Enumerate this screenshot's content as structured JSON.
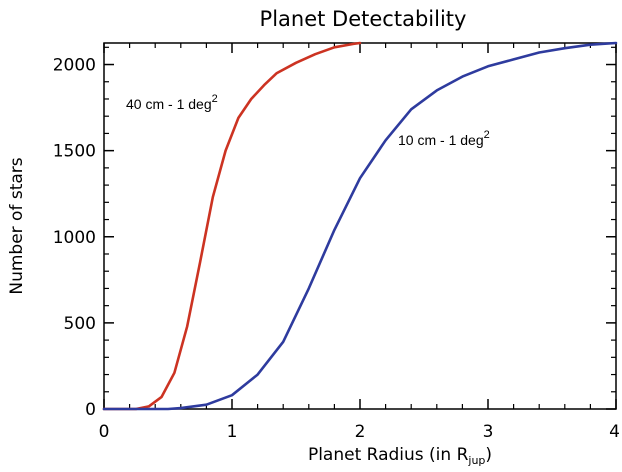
{
  "chart_data": {
    "type": "line",
    "title": "Planet Detectability",
    "xlabel": "Planet Radius (in R",
    "xlabel_sub": "jup",
    "xlabel_close": ")",
    "ylabel": "Number of stars",
    "xlim": [
      0,
      4
    ],
    "ylim": [
      0,
      2125
    ],
    "x_ticks": [
      "0",
      "1",
      "2",
      "3",
      "4"
    ],
    "y_ticks": [
      "0",
      "500",
      "1000",
      "1500",
      "2000"
    ],
    "grid": false,
    "series": [
      {
        "name": "40 cm - 1 deg",
        "name_sup": "2",
        "color": "#cc3322",
        "x": [
          0.0,
          0.25,
          0.35,
          0.45,
          0.55,
          0.65,
          0.75,
          0.85,
          0.95,
          1.05,
          1.15,
          1.25,
          1.35,
          1.5,
          1.65,
          1.8,
          1.95,
          2.0
        ],
        "y": [
          0,
          0,
          15,
          70,
          210,
          480,
          850,
          1230,
          1500,
          1690,
          1800,
          1880,
          1950,
          2010,
          2060,
          2100,
          2120,
          2125
        ]
      },
      {
        "name": "10 cm - 1 deg",
        "name_sup": "2",
        "color": "#2e3b9e",
        "x": [
          0.0,
          0.5,
          0.6,
          0.8,
          1.0,
          1.2,
          1.4,
          1.6,
          1.8,
          2.0,
          2.2,
          2.4,
          2.6,
          2.8,
          3.0,
          3.2,
          3.4,
          3.6,
          3.8,
          4.0
        ],
        "y": [
          0,
          0,
          5,
          25,
          80,
          200,
          390,
          700,
          1040,
          1340,
          1560,
          1740,
          1850,
          1930,
          1990,
          2030,
          2070,
          2095,
          2115,
          2125
        ]
      }
    ]
  }
}
